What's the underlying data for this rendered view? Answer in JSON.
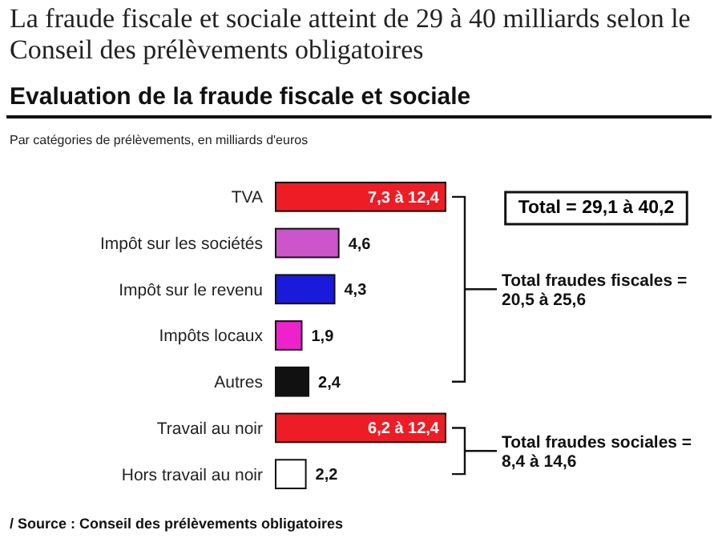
{
  "chart_data": {
    "type": "bar",
    "orientation": "horizontal",
    "title": "La fraude fiscale et sociale atteint de 29 à 40 milliards selon le Conseil des prélèvements obligatoires",
    "subtitle": "Evaluation de la fraude fiscale et sociale",
    "xlabel": "Par catégories de prélèvements, en milliards d'euros",
    "categories": [
      "TVA",
      "Impôt sur les sociétés",
      "Impôt sur le revenu",
      "Impôts locaux",
      "Autres",
      "Travail au noir",
      "Hors travail au noir"
    ],
    "values": [
      12.4,
      4.6,
      4.3,
      1.9,
      2.4,
      12.4,
      2.2
    ],
    "value_labels": [
      "7,3 à 12,4",
      "4,6",
      "4,3",
      "1,9",
      "2,4",
      "6,2 à 12,4",
      "2,2"
    ],
    "colors": [
      "#ee1c25",
      "#cc55cc",
      "#1a1adb",
      "#ee22cc",
      "#111111",
      "#ee1c25",
      "#ffffff"
    ],
    "annotations": [
      "Total = 29,1 à 40,2",
      "Total fraudes fiscales = 20,5 à 25,6",
      "Total fraudes sociales = 8,4 à 14,6",
      "/ Source : Conseil des prélèvements obligatoires"
    ]
  }
}
